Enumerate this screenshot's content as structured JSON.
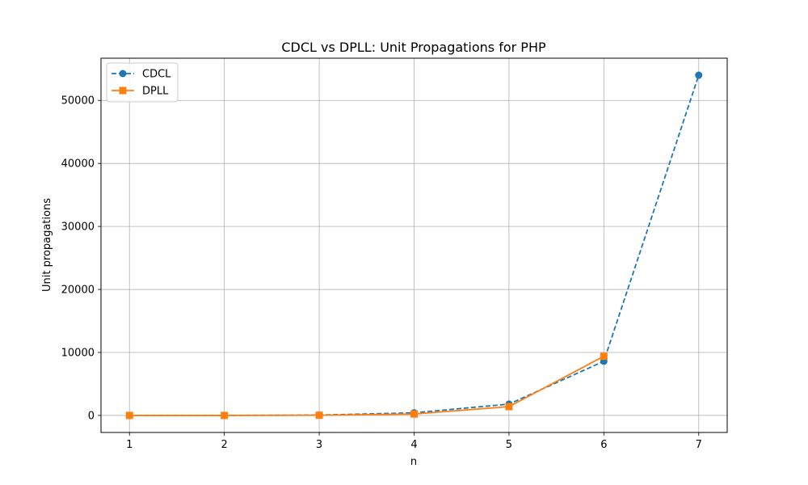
{
  "chart_data": {
    "type": "line",
    "title": "CDCL vs DPLL: Unit Propagations for PHP",
    "xlabel": "n",
    "ylabel": "Unit propagations",
    "x": [
      1,
      2,
      3,
      4,
      5,
      6,
      7
    ],
    "xlim": [
      0.7,
      7.3
    ],
    "ylim": [
      -2700,
      56700
    ],
    "yticks": [
      0,
      10000,
      20000,
      30000,
      40000,
      50000
    ],
    "grid": true,
    "legend_position": "top-left",
    "series": [
      {
        "name": "CDCL",
        "values": [
          0,
          2,
          60,
          420,
          1800,
          8600,
          54000
        ],
        "color": "#1f77b4",
        "linestyle": "dashed",
        "marker": "circle"
      },
      {
        "name": "DPLL",
        "values": [
          0,
          2,
          30,
          230,
          1400,
          9400,
          null
        ],
        "color": "#ff7f0e",
        "linestyle": "solid",
        "marker": "square"
      }
    ]
  }
}
